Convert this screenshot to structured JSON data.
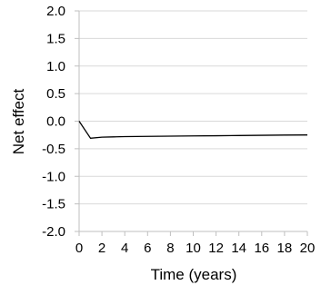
{
  "chart_data": {
    "type": "line",
    "title": "",
    "xlabel": "Time (years)",
    "ylabel": "Net effect",
    "xlim": [
      0,
      20
    ],
    "ylim": [
      -2.0,
      2.0
    ],
    "x_ticks": [
      "0",
      "2",
      "4",
      "6",
      "8",
      "10",
      "12",
      "14",
      "16",
      "18",
      "20"
    ],
    "y_ticks": [
      "2.0",
      "1.5",
      "1.0",
      "0.5",
      "0.0",
      "-0.5",
      "-1.0",
      "-1.5",
      "-2.0"
    ],
    "grid": "horizontal",
    "series": [
      {
        "x": [
          0,
          1,
          2,
          3,
          4,
          5,
          6,
          8,
          10,
          12,
          14,
          16,
          18,
          20
        ],
        "y": [
          0.0,
          -0.31,
          -0.29,
          -0.285,
          -0.28,
          -0.278,
          -0.276,
          -0.272,
          -0.268,
          -0.264,
          -0.26,
          -0.256,
          -0.252,
          -0.25
        ],
        "color": "#000000"
      }
    ],
    "colors": {
      "grid": "#d9d9d9",
      "axis": "#bfbfbf",
      "line": "#000000"
    }
  }
}
